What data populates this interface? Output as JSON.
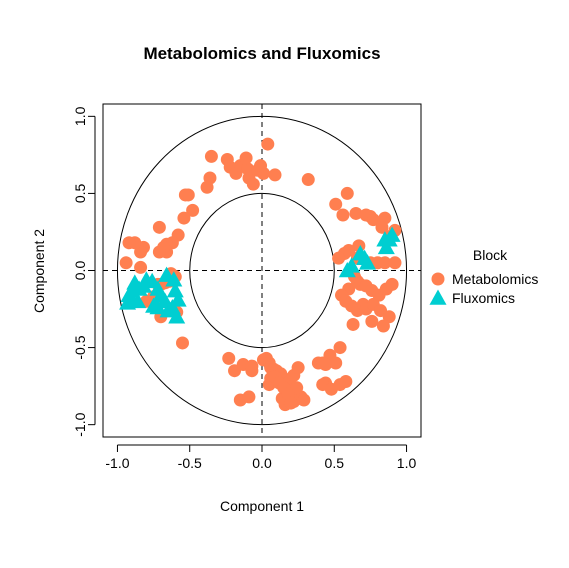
{
  "chart_data": {
    "type": "scatter",
    "title": "Metabolomics and Fluxomics",
    "xlabel": "Component  1",
    "ylabel": "Component  2",
    "xlim": [
      -1.1,
      1.1
    ],
    "ylim": [
      -1.08,
      1.08
    ],
    "xticks": [
      -1.0,
      -0.5,
      0.0,
      0.5,
      1.0
    ],
    "yticks": [
      -1.0,
      -0.5,
      0.0,
      0.5,
      1.0
    ],
    "xtick_labels": [
      "-1.0",
      "-0.5",
      "0.0",
      "0.5",
      "1.0"
    ],
    "ytick_labels": [
      "-1.0",
      "-0.5",
      "0.0",
      "0.5",
      "1.0"
    ],
    "circles": [
      0.5,
      1.0
    ],
    "reference_lines": [
      {
        "axis": "x",
        "value": 0,
        "style": "dashed"
      },
      {
        "axis": "y",
        "value": 0,
        "style": "dashed"
      }
    ],
    "grid": false,
    "legend": {
      "title": "Block",
      "position": "right"
    },
    "series": [
      {
        "name": "Metabolomics",
        "marker": "circle",
        "color": "#FF7F50",
        "points": [
          [
            -0.35,
            0.74
          ],
          [
            -0.24,
            0.72
          ],
          [
            -0.22,
            0.67
          ],
          [
            -0.18,
            0.63
          ],
          [
            -0.15,
            0.68
          ],
          [
            -0.1,
            0.66
          ],
          [
            -0.09,
            0.6
          ],
          [
            -0.11,
            0.73
          ],
          [
            -0.06,
            0.56
          ],
          [
            -0.03,
            0.65
          ],
          [
            0.01,
            0.63
          ],
          [
            0.04,
            0.82
          ],
          [
            0.09,
            0.62
          ],
          [
            -0.01,
            0.68
          ],
          [
            0.32,
            0.59
          ],
          [
            -0.36,
            0.6
          ],
          [
            -0.38,
            0.54
          ],
          [
            -0.51,
            0.49
          ],
          [
            -0.53,
            0.49
          ],
          [
            -0.48,
            0.39
          ],
          [
            -0.54,
            0.34
          ],
          [
            -0.58,
            0.23
          ],
          [
            -0.62,
            0.18
          ],
          [
            -0.66,
            0.17
          ],
          [
            -0.66,
            0.12
          ],
          [
            -0.68,
            0.15
          ],
          [
            -0.71,
            0.28
          ],
          [
            -0.71,
            0.12
          ],
          [
            -0.82,
            0.15
          ],
          [
            -0.84,
            0.12
          ],
          [
            -0.88,
            0.18
          ],
          [
            -0.92,
            0.18
          ],
          [
            -0.84,
            0.02
          ],
          [
            -0.94,
            0.05
          ],
          [
            -0.63,
            -0.02
          ],
          [
            -0.6,
            -0.04
          ],
          [
            -0.64,
            -0.07
          ],
          [
            -0.67,
            -0.08
          ],
          [
            -0.7,
            -0.09
          ],
          [
            -0.72,
            -0.09
          ],
          [
            -0.75,
            -0.17
          ],
          [
            -0.74,
            -0.19
          ],
          [
            -0.8,
            -0.2
          ],
          [
            -0.7,
            -0.3
          ],
          [
            -0.59,
            -0.27
          ],
          [
            -0.55,
            -0.47
          ],
          [
            0.59,
            0.5
          ],
          [
            0.51,
            0.43
          ],
          [
            0.56,
            0.36
          ],
          [
            0.65,
            0.37
          ],
          [
            0.72,
            0.36
          ],
          [
            0.75,
            0.35
          ],
          [
            0.77,
            0.33
          ],
          [
            0.85,
            0.34
          ],
          [
            0.83,
            0.28
          ],
          [
            0.88,
            0.22
          ],
          [
            0.92,
            0.26
          ],
          [
            0.67,
            0.16
          ],
          [
            0.6,
            0.13
          ],
          [
            0.57,
            0.11
          ],
          [
            0.53,
            0.08
          ],
          [
            0.66,
            0.08
          ],
          [
            0.75,
            0.05
          ],
          [
            0.8,
            0.05
          ],
          [
            0.85,
            0.05
          ],
          [
            0.92,
            0.05
          ],
          [
            0.64,
            -0.04
          ],
          [
            0.66,
            -0.07
          ],
          [
            0.68,
            -0.09
          ],
          [
            0.72,
            -0.1
          ],
          [
            0.76,
            -0.13
          ],
          [
            0.81,
            -0.16
          ],
          [
            0.86,
            -0.12
          ],
          [
            0.9,
            -0.09
          ],
          [
            0.6,
            -0.12
          ],
          [
            0.55,
            -0.16
          ],
          [
            0.58,
            -0.2
          ],
          [
            0.62,
            -0.23
          ],
          [
            0.66,
            -0.26
          ],
          [
            0.7,
            -0.22
          ],
          [
            0.72,
            -0.25
          ],
          [
            0.77,
            -0.22
          ],
          [
            0.82,
            -0.26
          ],
          [
            0.88,
            -0.3
          ],
          [
            0.84,
            -0.36
          ],
          [
            0.76,
            -0.33
          ],
          [
            0.63,
            -0.35
          ],
          [
            0.47,
            -0.55
          ],
          [
            0.51,
            -0.6
          ],
          [
            0.54,
            -0.5
          ],
          [
            0.44,
            -0.61
          ],
          [
            0.39,
            -0.6
          ],
          [
            0.42,
            -0.6
          ],
          [
            0.44,
            -0.73
          ],
          [
            0.42,
            -0.74
          ],
          [
            0.48,
            -0.77
          ],
          [
            0.54,
            -0.74
          ],
          [
            0.58,
            -0.72
          ],
          [
            -0.23,
            -0.57
          ],
          [
            -0.19,
            -0.65
          ],
          [
            -0.13,
            -0.61
          ],
          [
            -0.15,
            -0.84
          ],
          [
            -0.09,
            -0.82
          ],
          [
            -0.07,
            -0.65
          ],
          [
            -0.07,
            -0.62
          ],
          [
            0.01,
            -0.58
          ],
          [
            0.03,
            -0.57
          ],
          [
            0.05,
            -0.6
          ],
          [
            0.06,
            -0.63
          ],
          [
            0.08,
            -0.64
          ],
          [
            0.1,
            -0.65
          ],
          [
            0.11,
            -0.69
          ],
          [
            0.13,
            -0.67
          ],
          [
            0.15,
            -0.7
          ],
          [
            0.17,
            -0.74
          ],
          [
            0.19,
            -0.72
          ],
          [
            0.22,
            -0.68
          ],
          [
            0.25,
            -0.63
          ],
          [
            0.27,
            -0.82
          ],
          [
            0.29,
            -0.84
          ],
          [
            0.22,
            -0.85
          ],
          [
            0.16,
            -0.87
          ],
          [
            0.14,
            -0.83
          ],
          [
            0.2,
            -0.78
          ],
          [
            0.24,
            -0.76
          ],
          [
            0.06,
            -0.7
          ],
          [
            0.05,
            -0.74
          ],
          [
            0.09,
            -0.69
          ],
          [
            0.12,
            -0.73
          ],
          [
            0.15,
            -0.76
          ],
          [
            0.18,
            -0.8
          ],
          [
            0.2,
            -0.86
          ]
        ]
      },
      {
        "name": "Fluxomics",
        "marker": "triangle",
        "color": "#00CED1",
        "points": [
          [
            -0.88,
            -0.08
          ],
          [
            -0.9,
            -0.13
          ],
          [
            -0.92,
            -0.16
          ],
          [
            -0.9,
            -0.19
          ],
          [
            -0.86,
            -0.2
          ],
          [
            -0.93,
            -0.21
          ],
          [
            -0.85,
            -0.12
          ],
          [
            -0.82,
            -0.1
          ],
          [
            -0.8,
            -0.06
          ],
          [
            -0.76,
            -0.07
          ],
          [
            -0.72,
            -0.12
          ],
          [
            -0.7,
            -0.16
          ],
          [
            -0.67,
            -0.2
          ],
          [
            -0.72,
            -0.24
          ],
          [
            -0.75,
            -0.23
          ],
          [
            -0.66,
            -0.03
          ],
          [
            -0.61,
            -0.06
          ],
          [
            -0.6,
            -0.13
          ],
          [
            -0.58,
            -0.19
          ],
          [
            -0.62,
            -0.24
          ],
          [
            -0.65,
            -0.26
          ],
          [
            -0.59,
            -0.3
          ],
          [
            0.59,
            0.0
          ],
          [
            0.62,
            0.03
          ],
          [
            0.68,
            0.11
          ],
          [
            0.71,
            0.08
          ],
          [
            0.73,
            0.05
          ],
          [
            0.86,
            0.15
          ],
          [
            0.88,
            0.2
          ],
          [
            0.9,
            0.23
          ],
          [
            0.85,
            0.2
          ]
        ]
      }
    ]
  }
}
